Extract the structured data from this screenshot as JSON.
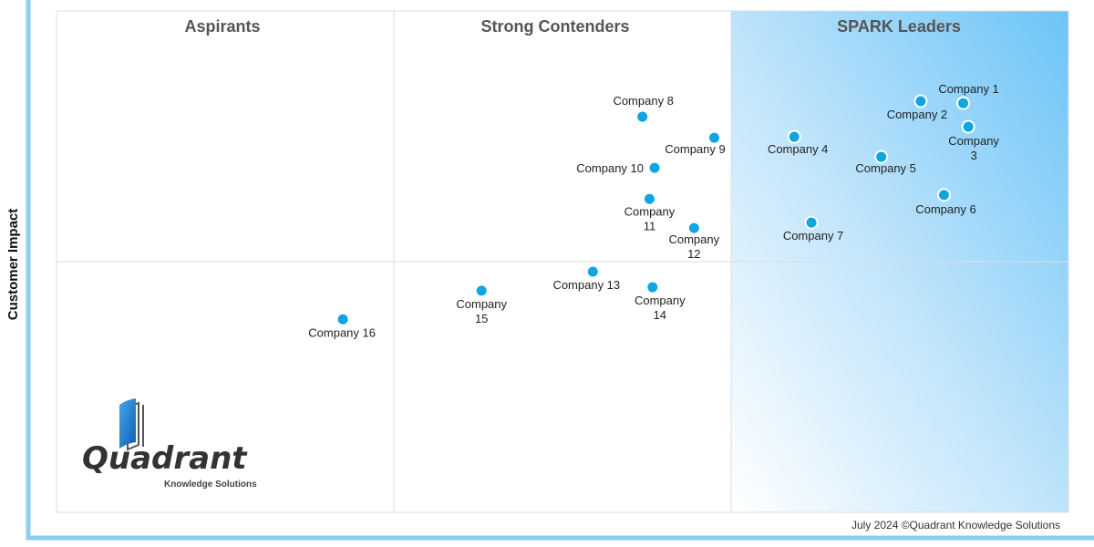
{
  "chart_data": {
    "type": "scatter",
    "title": "",
    "xlabel": "",
    "ylabel": "Customer Impact",
    "xlim": [
      0,
      100
    ],
    "ylim": [
      0,
      100
    ],
    "grid": false,
    "quadrants": {
      "top_left": "Aspirants",
      "top_middle": "Strong Contenders",
      "top_right": "SPARK Leaders"
    },
    "points": [
      {
        "name": "Company 1",
        "x": 89.6,
        "y": 81.6
      },
      {
        "name": "Company 2",
        "x": 85.4,
        "y": 82.0
      },
      {
        "name": "Company 3",
        "x": 90.1,
        "y": 76.9
      },
      {
        "name": "Company 4",
        "x": 72.9,
        "y": 74.9
      },
      {
        "name": "Company 5",
        "x": 81.5,
        "y": 70.9
      },
      {
        "name": "Company 6",
        "x": 87.7,
        "y": 63.3
      },
      {
        "name": "Company 7",
        "x": 74.6,
        "y": 57.8
      },
      {
        "name": "Company 8",
        "x": 57.9,
        "y": 78.9
      },
      {
        "name": "Company 9",
        "x": 65.0,
        "y": 74.7
      },
      {
        "name": "Company 10",
        "x": 59.1,
        "y": 68.7
      },
      {
        "name": "Company 11",
        "x": 58.6,
        "y": 62.5
      },
      {
        "name": "Company 12",
        "x": 63.0,
        "y": 56.7
      },
      {
        "name": "Company 13",
        "x": 53.0,
        "y": 48.0
      },
      {
        "name": "Company 14",
        "x": 58.9,
        "y": 44.9
      },
      {
        "name": "Company 15",
        "x": 42.0,
        "y": 44.2
      },
      {
        "name": "Company 16",
        "x": 28.3,
        "y": 38.5
      }
    ],
    "colors": {
      "point": "#0ea5e0",
      "axis": "#7cc6f0",
      "leaders_fill": "#7fcaf7"
    }
  },
  "logo": {
    "name": "Quadrant",
    "tagline": "Knowledge Solutions"
  },
  "footer": "July 2024 ©Quadrant Knowledge Solutions"
}
